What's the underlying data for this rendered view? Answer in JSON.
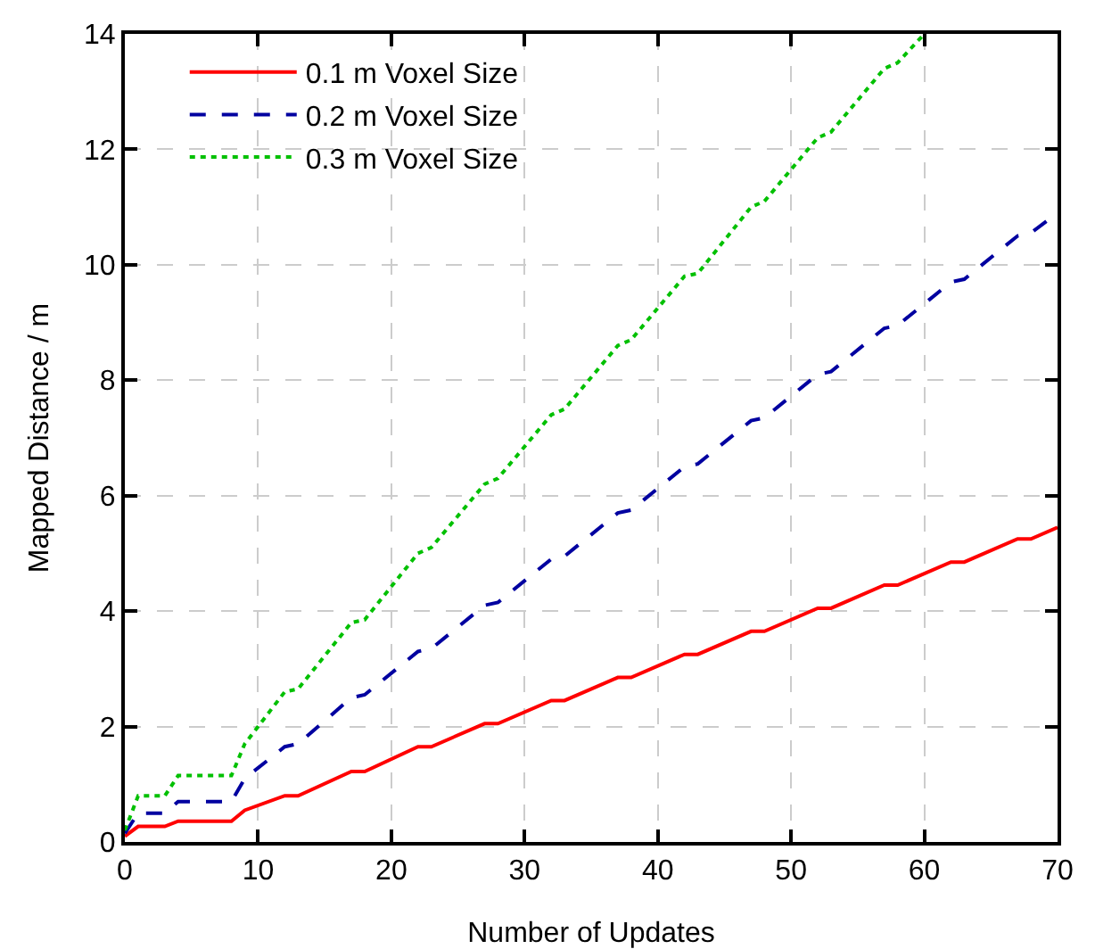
{
  "chart_data": {
    "type": "line",
    "xlabel": "Number of Updates",
    "ylabel": "Mapped Distance / m",
    "xlim": [
      0,
      70
    ],
    "ylim": [
      0,
      14
    ],
    "xticks": [
      0,
      10,
      20,
      30,
      40,
      50,
      60,
      70
    ],
    "yticks": [
      0,
      2,
      4,
      6,
      8,
      10,
      12,
      14
    ],
    "grid": true,
    "legend": "top left",
    "marker": "none",
    "series": [
      {
        "name": "0.1 m Voxel Size",
        "color": "#ff0000",
        "line_style": "solid",
        "x": [
          0,
          1,
          3,
          4,
          8,
          9,
          12,
          13,
          17,
          18,
          22,
          23,
          27,
          28,
          32,
          33,
          37,
          38,
          42,
          43,
          47,
          48,
          52,
          53,
          57,
          58,
          62,
          63,
          67,
          68,
          70
        ],
        "values": [
          0.1,
          0.27,
          0.27,
          0.36,
          0.36,
          0.55,
          0.8,
          0.8,
          1.22,
          1.22,
          1.65,
          1.65,
          2.05,
          2.05,
          2.45,
          2.45,
          2.85,
          2.85,
          3.25,
          3.25,
          3.65,
          3.65,
          4.05,
          4.05,
          4.45,
          4.45,
          4.85,
          4.85,
          5.25,
          5.25,
          5.45
        ]
      },
      {
        "name": "0.2 m Voxel Size",
        "color": "#0000a0",
        "line_style": "dashed",
        "x": [
          0,
          1,
          3,
          4,
          8,
          9,
          12,
          13,
          17,
          18,
          22,
          23,
          27,
          28,
          32,
          33,
          37,
          38,
          42,
          43,
          47,
          48,
          52,
          53,
          57,
          58,
          62,
          63,
          67,
          68,
          70
        ],
        "values": [
          0.15,
          0.5,
          0.5,
          0.7,
          0.7,
          1.1,
          1.65,
          1.7,
          2.5,
          2.55,
          3.3,
          3.35,
          4.1,
          4.15,
          4.9,
          4.95,
          5.7,
          5.75,
          6.5,
          6.55,
          7.3,
          7.35,
          8.1,
          8.15,
          8.9,
          8.95,
          9.7,
          9.75,
          10.5,
          10.55,
          10.9
        ]
      },
      {
        "name": "0.3 m Voxel Size",
        "color": "#00c000",
        "line_style": "dotted",
        "x": [
          0,
          1,
          3,
          4,
          8,
          9,
          12,
          13,
          17,
          18,
          22,
          23,
          27,
          28,
          32,
          33,
          37,
          38,
          42,
          43,
          47,
          48,
          52,
          53,
          57,
          58,
          60
        ],
        "values": [
          0.2,
          0.8,
          0.8,
          1.15,
          1.15,
          1.7,
          2.6,
          2.65,
          3.8,
          3.85,
          5.0,
          5.1,
          6.2,
          6.3,
          7.4,
          7.5,
          8.6,
          8.7,
          9.8,
          9.85,
          11.0,
          11.1,
          12.2,
          12.3,
          13.4,
          13.5,
          14.0
        ]
      }
    ]
  }
}
